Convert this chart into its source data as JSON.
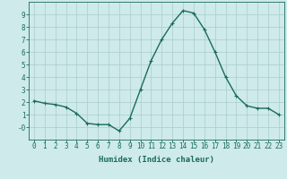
{
  "x": [
    0,
    1,
    2,
    3,
    4,
    5,
    6,
    7,
    8,
    9,
    10,
    11,
    12,
    13,
    14,
    15,
    16,
    17,
    18,
    19,
    20,
    21,
    22,
    23
  ],
  "y": [
    2.1,
    1.9,
    1.8,
    1.6,
    1.1,
    0.3,
    0.2,
    0.2,
    -0.3,
    0.7,
    3.0,
    5.3,
    7.0,
    8.3,
    9.3,
    9.1,
    7.8,
    6.0,
    4.0,
    2.5,
    1.7,
    1.5,
    1.5,
    1.0
  ],
  "line_color": "#1a6b5a",
  "marker": "+",
  "marker_size": 3,
  "bg_color": "#ceeaea",
  "grid_color": "#aacccc",
  "xlabel": "Humidex (Indice chaleur)",
  "ylim": [
    -1,
    10
  ],
  "xlim": [
    -0.5,
    23.5
  ],
  "yticks": [
    0,
    1,
    2,
    3,
    4,
    5,
    6,
    7,
    8,
    9
  ],
  "ytick_labels": [
    "-0",
    "1",
    "2",
    "3",
    "4",
    "5",
    "6",
    "7",
    "8",
    "9"
  ],
  "xtick_labels": [
    "0",
    "1",
    "2",
    "3",
    "4",
    "5",
    "6",
    "7",
    "8",
    "9",
    "10",
    "11",
    "12",
    "13",
    "14",
    "15",
    "16",
    "17",
    "18",
    "19",
    "20",
    "21",
    "22",
    "23"
  ],
  "xlabel_fontsize": 6.5,
  "tick_fontsize": 5.5,
  "line_width": 1.0
}
